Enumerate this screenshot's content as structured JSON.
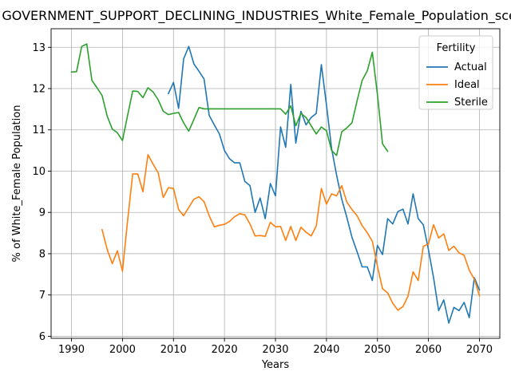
{
  "chart_data": {
    "type": "line",
    "title": "GOVERNMENT_SUPPORT_DECLINING_INDUSTRIES_White_Female_Population_scenario",
    "xlabel": "Years",
    "ylabel": "% of White_Female Population",
    "xlim": [
      1986,
      2074
    ],
    "ylim": [
      5.95,
      13.45
    ],
    "xticks": [
      1990,
      2000,
      2010,
      2020,
      2030,
      2040,
      2050,
      2060,
      2070
    ],
    "yticks": [
      6,
      7,
      8,
      9,
      10,
      11,
      12,
      13
    ],
    "grid": true,
    "legend": {
      "title": "Fertility",
      "placement": "top-right"
    },
    "series": [
      {
        "name": "Actual",
        "color": "#1f77b4",
        "x": [
          2009,
          2010,
          2011,
          2012,
          2013,
          2014,
          2015,
          2016,
          2017,
          2018,
          2019,
          2020,
          2021,
          2022,
          2023,
          2024,
          2025,
          2026,
          2027,
          2028,
          2029,
          2030,
          2031,
          2032,
          2033,
          2034,
          2035,
          2036,
          2037,
          2038,
          2039,
          2040,
          2041,
          2042,
          2043,
          2044,
          2045,
          2046,
          2047,
          2048,
          2049,
          2050,
          2051,
          2052,
          2053,
          2054,
          2055,
          2056,
          2057,
          2058,
          2059,
          2060,
          2061,
          2062,
          2063,
          2064,
          2065,
          2066,
          2067,
          2068,
          2069,
          2070
        ],
        "y": [
          11.88,
          12.15,
          11.52,
          12.72,
          13.02,
          12.6,
          12.42,
          12.23,
          11.35,
          11.12,
          10.9,
          10.5,
          10.3,
          10.2,
          10.2,
          9.75,
          9.65,
          9.0,
          9.35,
          8.85,
          9.7,
          9.4,
          11.07,
          10.58,
          12.1,
          10.68,
          11.45,
          11.12,
          11.3,
          11.4,
          12.58,
          11.6,
          10.55,
          9.9,
          9.32,
          8.88,
          8.4,
          8.05,
          7.68,
          7.68,
          7.35,
          8.2,
          7.98,
          8.85,
          8.72,
          9.02,
          9.08,
          8.72,
          9.45,
          8.85,
          8.7,
          8.1,
          7.42,
          6.62,
          6.88,
          6.32,
          6.7,
          6.62,
          6.82,
          6.45,
          7.42,
          7.12
        ]
      },
      {
        "name": "Ideal",
        "color": "#ff7f0e",
        "x": [
          1996,
          1997,
          1998,
          1999,
          2000,
          2001,
          2002,
          2003,
          2004,
          2005,
          2006,
          2007,
          2008,
          2009,
          2010,
          2011,
          2012,
          2013,
          2014,
          2015,
          2016,
          2017,
          2018,
          2019,
          2020,
          2021,
          2022,
          2023,
          2024,
          2025,
          2026,
          2027,
          2028,
          2029,
          2030,
          2031,
          2032,
          2033,
          2034,
          2035,
          2036,
          2037,
          2038,
          2039,
          2040,
          2041,
          2042,
          2043,
          2044,
          2045,
          2046,
          2047,
          2048,
          2049,
          2050,
          2051,
          2052,
          2053,
          2054,
          2055,
          2056,
          2057,
          2058,
          2059,
          2060,
          2061,
          2062,
          2063,
          2064,
          2065,
          2066,
          2067,
          2068,
          2069,
          2070
        ],
        "y": [
          8.58,
          8.1,
          7.76,
          8.07,
          7.58,
          8.8,
          9.93,
          9.93,
          9.5,
          10.4,
          10.17,
          9.96,
          9.36,
          9.6,
          9.58,
          9.07,
          8.92,
          9.12,
          9.32,
          9.38,
          9.26,
          8.92,
          8.65,
          8.69,
          8.71,
          8.78,
          8.9,
          8.97,
          8.94,
          8.72,
          8.43,
          8.44,
          8.42,
          8.76,
          8.65,
          8.66,
          8.32,
          8.66,
          8.32,
          8.64,
          8.52,
          8.43,
          8.67,
          9.58,
          9.2,
          9.45,
          9.4,
          9.65,
          9.25,
          9.07,
          8.92,
          8.68,
          8.51,
          8.3,
          7.7,
          7.15,
          7.05,
          6.8,
          6.63,
          6.72,
          6.97,
          7.56,
          7.35,
          8.18,
          8.23,
          8.7,
          8.38,
          8.48,
          8.08,
          8.18,
          8.02,
          7.96,
          7.6,
          7.38,
          6.98
        ]
      },
      {
        "name": "Sterile",
        "color": "#2ca02c",
        "x": [
          1990,
          1991,
          1992,
          1993,
          1994,
          1995,
          1996,
          1997,
          1998,
          1999,
          2000,
          2001,
          2002,
          2003,
          2004,
          2005,
          2006,
          2007,
          2008,
          2009,
          2010,
          2011,
          2012,
          2013,
          2014,
          2015,
          2016,
          2017,
          2018,
          2019,
          2020,
          2021,
          2022,
          2023,
          2024,
          2025,
          2026,
          2027,
          2028,
          2029,
          2030,
          2031,
          2032,
          2033,
          2034,
          2035,
          2036,
          2037,
          2038,
          2039,
          2040,
          2041,
          2042,
          2043,
          2044,
          2045,
          2046,
          2047,
          2048,
          2049,
          2050,
          2051,
          2052
        ],
        "y": [
          12.4,
          12.41,
          13.02,
          13.08,
          12.2,
          12.02,
          11.83,
          11.33,
          11.02,
          10.93,
          10.74,
          11.35,
          11.94,
          11.93,
          11.78,
          12.02,
          11.92,
          11.73,
          11.45,
          11.37,
          11.4,
          11.42,
          11.17,
          10.97,
          11.25,
          11.54,
          11.51,
          11.51,
          11.51,
          11.51,
          11.51,
          11.51,
          11.51,
          11.51,
          11.51,
          11.51,
          11.51,
          11.51,
          11.51,
          11.51,
          11.51,
          11.51,
          11.38,
          11.58,
          11.1,
          11.4,
          11.3,
          11.1,
          10.9,
          11.07,
          10.98,
          10.5,
          10.38,
          10.95,
          11.05,
          11.17,
          11.7,
          12.2,
          12.43,
          12.88,
          11.86,
          10.66,
          10.48
        ]
      }
    ]
  }
}
